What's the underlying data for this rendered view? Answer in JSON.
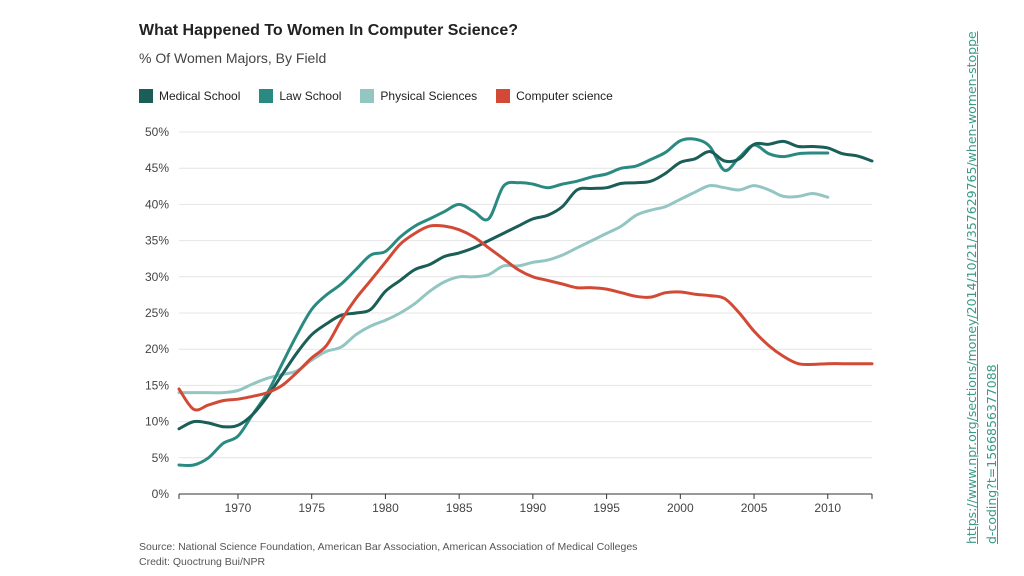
{
  "title": "What Happened To Women In Computer Science?",
  "subtitle": "% Of Women Majors, By Field",
  "source": "Source: National Science Foundation, American Bar Association, American Association of Medical Colleges",
  "credit": "Credit: Quoctrung Bui/NPR",
  "link": "https://www.npr.org/sections/money/2014/10/21/357629765/when-women-stopped-coding?t=1566856377088",
  "colors": {
    "medical": "#1b5e57",
    "law": "#2a8a82",
    "physical": "#93c6c3",
    "cs": "#d24a35"
  },
  "chart_data": {
    "type": "line",
    "title": "What Happened To Women In Computer Science?",
    "subtitle": "% Of Women Majors, By Field",
    "xlabel": "",
    "ylabel": "",
    "xlim": [
      1966,
      2013
    ],
    "ylim": [
      0,
      50
    ],
    "x_ticks": [
      "1970",
      "1975",
      "1980",
      "1985",
      "1990",
      "1995",
      "2000",
      "2005",
      "2010"
    ],
    "y_ticks": [
      "0%",
      "5%",
      "10%",
      "15%",
      "20%",
      "25%",
      "30%",
      "35%",
      "40%",
      "45%",
      "50%"
    ],
    "grid": "horizontal",
    "legend_position": "top-left",
    "series": [
      {
        "name": "Medical School",
        "color": "#1b5e57",
        "points": [
          [
            1966,
            9.0
          ],
          [
            1967,
            10.0
          ],
          [
            1968,
            9.8
          ],
          [
            1969,
            9.3
          ],
          [
            1970,
            9.5
          ],
          [
            1971,
            11.0
          ],
          [
            1972,
            13.5
          ],
          [
            1973,
            16.5
          ],
          [
            1974,
            19.5
          ],
          [
            1975,
            22.0
          ],
          [
            1976,
            23.5
          ],
          [
            1977,
            24.7
          ],
          [
            1978,
            25.0
          ],
          [
            1979,
            25.5
          ],
          [
            1980,
            28.0
          ],
          [
            1981,
            29.5
          ],
          [
            1982,
            31.0
          ],
          [
            1983,
            31.7
          ],
          [
            1984,
            32.8
          ],
          [
            1985,
            33.3
          ],
          [
            1986,
            34.0
          ],
          [
            1987,
            35.0
          ],
          [
            1988,
            36.0
          ],
          [
            1989,
            37.0
          ],
          [
            1990,
            38.0
          ],
          [
            1991,
            38.5
          ],
          [
            1992,
            39.7
          ],
          [
            1993,
            42.0
          ],
          [
            1994,
            42.2
          ],
          [
            1995,
            42.3
          ],
          [
            1996,
            42.9
          ],
          [
            1997,
            43.0
          ],
          [
            1998,
            43.2
          ],
          [
            1999,
            44.3
          ],
          [
            2000,
            45.8
          ],
          [
            2001,
            46.3
          ],
          [
            2002,
            47.3
          ],
          [
            2003,
            46.0
          ],
          [
            2004,
            46.3
          ],
          [
            2005,
            48.3
          ],
          [
            2006,
            48.3
          ],
          [
            2007,
            48.7
          ],
          [
            2008,
            48.0
          ],
          [
            2009,
            48.0
          ],
          [
            2010,
            47.8
          ],
          [
            2011,
            47.0
          ],
          [
            2012,
            46.7
          ],
          [
            2013,
            46.0
          ]
        ]
      },
      {
        "name": "Law School",
        "color": "#2a8a82",
        "points": [
          [
            1966,
            4.0
          ],
          [
            1967,
            4.0
          ],
          [
            1968,
            5.0
          ],
          [
            1969,
            7.0
          ],
          [
            1970,
            8.0
          ],
          [
            1971,
            11.0
          ],
          [
            1972,
            14.0
          ],
          [
            1973,
            18.0
          ],
          [
            1974,
            22.0
          ],
          [
            1975,
            25.5
          ],
          [
            1976,
            27.5
          ],
          [
            1977,
            29.0
          ],
          [
            1978,
            31.0
          ],
          [
            1979,
            33.0
          ],
          [
            1980,
            33.5
          ],
          [
            1981,
            35.5
          ],
          [
            1982,
            37.0
          ],
          [
            1983,
            38.0
          ],
          [
            1984,
            39.0
          ],
          [
            1985,
            40.0
          ],
          [
            1986,
            39.0
          ],
          [
            1987,
            38.0
          ],
          [
            1988,
            42.5
          ],
          [
            1989,
            43.0
          ],
          [
            1990,
            42.8
          ],
          [
            1991,
            42.3
          ],
          [
            1992,
            42.8
          ],
          [
            1993,
            43.2
          ],
          [
            1994,
            43.8
          ],
          [
            1995,
            44.2
          ],
          [
            1996,
            45.0
          ],
          [
            1997,
            45.3
          ],
          [
            1998,
            46.2
          ],
          [
            1999,
            47.2
          ],
          [
            2000,
            48.8
          ],
          [
            2001,
            49.0
          ],
          [
            2002,
            48.0
          ],
          [
            2003,
            44.7
          ],
          [
            2004,
            46.5
          ],
          [
            2005,
            48.2
          ],
          [
            2006,
            47.0
          ],
          [
            2007,
            46.6
          ],
          [
            2008,
            47.0
          ],
          [
            2009,
            47.1
          ],
          [
            2010,
            47.1
          ]
        ]
      },
      {
        "name": "Physical Sciences",
        "color": "#93c6c3",
        "points": [
          [
            1966,
            14.0
          ],
          [
            1967,
            14.0
          ],
          [
            1968,
            14.0
          ],
          [
            1969,
            14.0
          ],
          [
            1970,
            14.3
          ],
          [
            1971,
            15.2
          ],
          [
            1972,
            16.0
          ],
          [
            1973,
            16.5
          ],
          [
            1974,
            17.0
          ],
          [
            1975,
            18.5
          ],
          [
            1976,
            19.7
          ],
          [
            1977,
            20.3
          ],
          [
            1978,
            22.0
          ],
          [
            1979,
            23.2
          ],
          [
            1980,
            24.0
          ],
          [
            1981,
            25.0
          ],
          [
            1982,
            26.3
          ],
          [
            1983,
            28.0
          ],
          [
            1984,
            29.3
          ],
          [
            1985,
            30.0
          ],
          [
            1986,
            30.0
          ],
          [
            1987,
            30.3
          ],
          [
            1988,
            31.5
          ],
          [
            1989,
            31.5
          ],
          [
            1990,
            32.0
          ],
          [
            1991,
            32.3
          ],
          [
            1992,
            33.0
          ],
          [
            1993,
            34.0
          ],
          [
            1994,
            35.0
          ],
          [
            1995,
            36.0
          ],
          [
            1996,
            37.0
          ],
          [
            1997,
            38.5
          ],
          [
            1998,
            39.2
          ],
          [
            1999,
            39.7
          ],
          [
            2000,
            40.7
          ],
          [
            2001,
            41.7
          ],
          [
            2002,
            42.6
          ],
          [
            2003,
            42.3
          ],
          [
            2004,
            42.0
          ],
          [
            2005,
            42.6
          ],
          [
            2006,
            42.0
          ],
          [
            2007,
            41.1
          ],
          [
            2008,
            41.1
          ],
          [
            2009,
            41.5
          ],
          [
            2010,
            41.0
          ]
        ]
      },
      {
        "name": "Computer science",
        "color": "#d24a35",
        "points": [
          [
            1966,
            14.5
          ],
          [
            1967,
            11.7
          ],
          [
            1968,
            12.3
          ],
          [
            1969,
            12.9
          ],
          [
            1970,
            13.1
          ],
          [
            1971,
            13.5
          ],
          [
            1972,
            14.0
          ],
          [
            1973,
            15.0
          ],
          [
            1974,
            16.8
          ],
          [
            1975,
            18.8
          ],
          [
            1976,
            20.5
          ],
          [
            1977,
            24.0
          ],
          [
            1978,
            27.0
          ],
          [
            1979,
            29.5
          ],
          [
            1980,
            32.0
          ],
          [
            1981,
            34.5
          ],
          [
            1982,
            36.0
          ],
          [
            1983,
            37.0
          ],
          [
            1984,
            37.0
          ],
          [
            1985,
            36.5
          ],
          [
            1986,
            35.5
          ],
          [
            1987,
            34.0
          ],
          [
            1988,
            32.5
          ],
          [
            1989,
            31.0
          ],
          [
            1990,
            30.0
          ],
          [
            1991,
            29.5
          ],
          [
            1992,
            29.0
          ],
          [
            1993,
            28.5
          ],
          [
            1994,
            28.5
          ],
          [
            1995,
            28.3
          ],
          [
            1996,
            27.8
          ],
          [
            1997,
            27.3
          ],
          [
            1998,
            27.2
          ],
          [
            1999,
            27.8
          ],
          [
            2000,
            27.9
          ],
          [
            2001,
            27.6
          ],
          [
            2002,
            27.4
          ],
          [
            2003,
            27.0
          ],
          [
            2004,
            25.0
          ],
          [
            2005,
            22.5
          ],
          [
            2006,
            20.5
          ],
          [
            2007,
            19.0
          ],
          [
            2008,
            18.0
          ],
          [
            2009,
            17.9
          ],
          [
            2010,
            18.0
          ],
          [
            2011,
            18.0
          ],
          [
            2012,
            18.0
          ],
          [
            2013,
            18.0
          ]
        ]
      }
    ]
  }
}
